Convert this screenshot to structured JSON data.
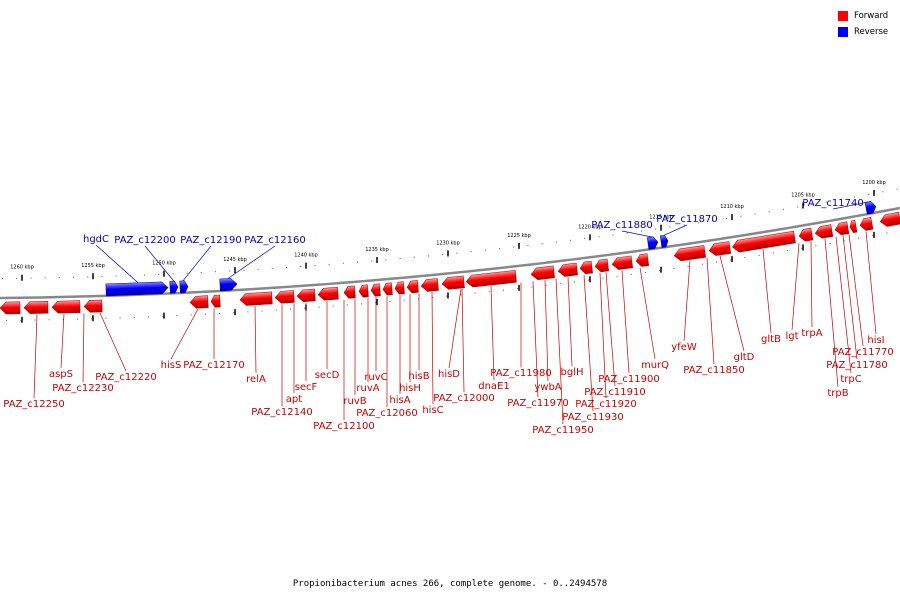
{
  "legend": [
    {
      "label": "Forward",
      "color": "#ff0000"
    },
    {
      "label": "Reverse",
      "color": "#0000ff"
    }
  ],
  "caption": "Propionibacterium acnes 266, complete genome. - 0..2494578",
  "ticks": [
    {
      "label": "1260 kbp"
    },
    {
      "label": "1255 kbp"
    },
    {
      "label": "1250 kbp"
    },
    {
      "label": "1245 kbp"
    },
    {
      "label": "1240 kbp"
    },
    {
      "label": "1235 kbp"
    },
    {
      "label": "1230 kbp"
    },
    {
      "label": "1225 kbp"
    },
    {
      "label": "1220 kbp"
    },
    {
      "label": "1215 kbp"
    },
    {
      "label": "1210 kbp"
    },
    {
      "label": "1205 kbp"
    },
    {
      "label": "1200 kbp"
    }
  ],
  "reverse_genes": [
    {
      "label": "hgdC"
    },
    {
      "label": "PAZ_c12200"
    },
    {
      "label": "PAZ_c12190"
    },
    {
      "label": "PAZ_c12160"
    },
    {
      "label": "PAZ_c11880"
    },
    {
      "label": "PAZ_c11870"
    },
    {
      "label": "PAZ_c11740"
    }
  ],
  "forward_genes": [
    {
      "label": "PAZ_c12250"
    },
    {
      "label": "aspS"
    },
    {
      "label": "PAZ_c12230"
    },
    {
      "label": "PAZ_c12220"
    },
    {
      "label": "hisS"
    },
    {
      "label": "PAZ_c12170"
    },
    {
      "label": "relA"
    },
    {
      "label": "PAZ_c12140"
    },
    {
      "label": "apt"
    },
    {
      "label": "secF"
    },
    {
      "label": "secD"
    },
    {
      "label": "PAZ_c12100"
    },
    {
      "label": "ruvB"
    },
    {
      "label": "ruvA"
    },
    {
      "label": "ruvC"
    },
    {
      "label": "PAZ_c12060"
    },
    {
      "label": "hisA"
    },
    {
      "label": "hisH"
    },
    {
      "label": "hisB"
    },
    {
      "label": "hisC"
    },
    {
      "label": "hisD"
    },
    {
      "label": "PAZ_c12000"
    },
    {
      "label": "dnaE1"
    },
    {
      "label": "PAZ_c11980"
    },
    {
      "label": "PAZ_c11970"
    },
    {
      "label": "ywbA"
    },
    {
      "label": "PAZ_c11950"
    },
    {
      "label": "bglH"
    },
    {
      "label": "PAZ_c11930"
    },
    {
      "label": "PAZ_c11920"
    },
    {
      "label": "PAZ_c11910"
    },
    {
      "label": "PAZ_c11900"
    },
    {
      "label": "murQ"
    },
    {
      "label": "yfeW"
    },
    {
      "label": "PAZ_c11850"
    },
    {
      "label": "gltD"
    },
    {
      "label": "gltB"
    },
    {
      "label": "lgt"
    },
    {
      "label": "trpA"
    },
    {
      "label": "trpB"
    },
    {
      "label": "trpC"
    },
    {
      "label": "PAZ_c11780"
    },
    {
      "label": "PAZ_c11770"
    },
    {
      "label": "hisI"
    }
  ]
}
